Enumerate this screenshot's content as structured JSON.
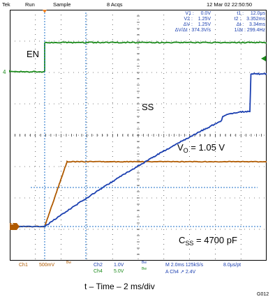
{
  "status_bar": {
    "brand": "Tek",
    "mode": "Run",
    "acq_mode": "Sample",
    "acqs": "8 Acqs",
    "date_time": "12 Mar 02 22:50:50"
  },
  "measurements": {
    "v1_label": "V1 :",
    "v1_value": "0.0V",
    "v2_label": "V2 :",
    "v2_value": "1.25V",
    "dv_label": "ΔV :",
    "dv_value": "1.25V",
    "dvdt_label": "ΔV/Δt :",
    "dvdt_value": "374.3V/s",
    "t1_label": "t1 :",
    "t1_value": "12.0μs",
    "t2_label": "t2 :",
    "t2_value": "3.352ms",
    "dt_label": "Δt :",
    "dt_value": "3.34ms",
    "inv_dt_label": "1/Δt :",
    "inv_dt_value": "299.4Hz"
  },
  "annotations": {
    "en": "EN",
    "ss": "SS",
    "vo_prefix": "V",
    "vo_sub": "O",
    "vo_suffix": " = 1.05 V",
    "css_prefix": "C",
    "css_sub": "SS",
    "css_suffix": " = 4700 pF"
  },
  "markers": {
    "ch4": "4",
    "ch1": "1"
  },
  "footer": {
    "ch1": "Ch1",
    "ch1_scale": "500mV",
    "bw1": "Bw",
    "ch2": "Ch2",
    "ch2_scale": "1.0V",
    "bw2": "Bw",
    "ch4": "Ch4",
    "ch4_scale": "5.0V",
    "bw4": "Bw",
    "timebase": "M 2.0ms 125kS/s",
    "pt_rate": "8.0μs/pt",
    "trigger": "A  Ch4  ↗  2.4V"
  },
  "axis_caption": "t – Time – 2 ms/div",
  "figure_id": "G012",
  "colors": {
    "grid": "#000000",
    "ch1_trace": "#b05a00",
    "ch2_trace": "#1b3fb0",
    "ch4_trace": "#1b8a1b",
    "cursor": "#1b6fc9",
    "trigger_marker": "#f08020"
  }
}
